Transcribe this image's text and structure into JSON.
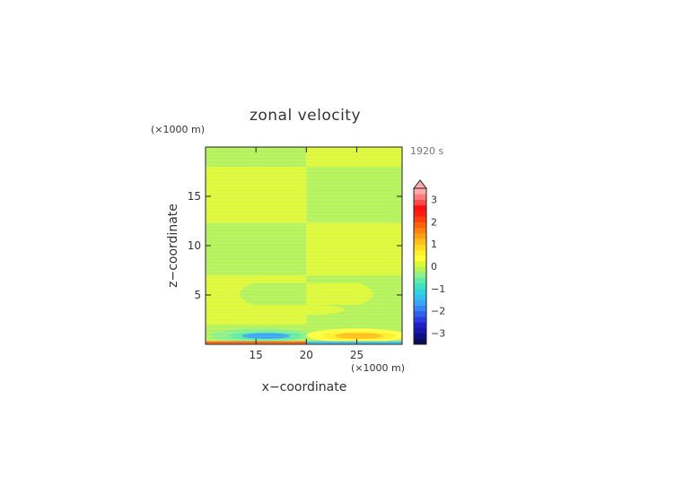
{
  "chart_data": {
    "type": "heatmap",
    "title": "zonal velocity",
    "xlabel": "x−coordinate",
    "ylabel": "z−coordinate",
    "x_unit": "(×1000 m)",
    "y_unit": "(×1000 m)",
    "time_label": "1920 s",
    "xlim": [
      10,
      29.5
    ],
    "ylim": [
      0,
      20
    ],
    "x_ticks": [
      "15",
      "20",
      "25"
    ],
    "x_tick_values": [
      15,
      20,
      25
    ],
    "y_ticks": [
      "5",
      "10",
      "15"
    ],
    "y_tick_values": [
      5,
      10,
      15
    ],
    "colorbar": {
      "ticks": [
        "3",
        "2",
        "1",
        "0",
        "−1",
        "−2",
        "−3"
      ],
      "tick_values": [
        3,
        2,
        1,
        0,
        -1,
        -2,
        -3
      ],
      "levels": [
        -3.5,
        -3.25,
        -3,
        -2.75,
        -2.5,
        -2.25,
        -2,
        -1.75,
        -1.5,
        -1.25,
        -1,
        -0.75,
        -0.5,
        -0.25,
        0,
        0.25,
        0.5,
        0.75,
        1,
        1.25,
        1.5,
        1.75,
        2,
        2.25,
        2.5,
        2.75,
        3,
        3.25,
        3.5
      ],
      "colors": [
        "#0a0a55",
        "#101080",
        "#1818a8",
        "#2020c8",
        "#2a3ee0",
        "#2f60ee",
        "#3585f5",
        "#3aa5f5",
        "#35c0ee",
        "#30d6dc",
        "#40e2c2",
        "#60eaa8",
        "#8cf088",
        "#b4f25a",
        "#dcf838",
        "#ffff3c",
        "#fff02a",
        "#ffd820",
        "#ffbe1a",
        "#ffa014",
        "#ff8010",
        "#ff600c",
        "#ff400c",
        "#ff2010",
        "#ff1010",
        "#ff4a4a",
        "#ff7c7c",
        "#ffaaaa"
      ],
      "extend": "max"
    },
    "regions": [
      {
        "xmin": 10,
        "xmax": 20,
        "zmin": 18,
        "zmax": 20,
        "value": -0.1
      },
      {
        "xmin": 20,
        "xmax": 29.5,
        "zmin": 18,
        "zmax": 20,
        "value": 0.1
      },
      {
        "xmin": 10,
        "xmax": 20,
        "zmin": 12.3,
        "zmax": 18,
        "value": 0.1
      },
      {
        "xmin": 20,
        "xmax": 29.5,
        "zmin": 12.3,
        "zmax": 18,
        "value": -0.1
      },
      {
        "xmin": 10,
        "xmax": 20,
        "zmin": 7,
        "zmax": 12.3,
        "value": -0.1
      },
      {
        "xmin": 20,
        "xmax": 29.5,
        "zmin": 7,
        "zmax": 12.3,
        "value": 0.1
      },
      {
        "xmin": 10,
        "xmax": 20,
        "zmin": 0.5,
        "zmax": 7,
        "value": 0.1
      },
      {
        "xmin": 20,
        "xmax": 29.5,
        "zmin": 0.5,
        "zmax": 7,
        "value": -0.1
      }
    ],
    "features": [
      {
        "kind": "tongue",
        "xmin": 12.5,
        "xmax": 20,
        "zmin": 4.0,
        "zmax": 6.2,
        "value": -0.1
      },
      {
        "kind": "tongue",
        "xmin": 20,
        "xmax": 27.5,
        "zmin": 4.0,
        "zmax": 6.2,
        "value": 0.1
      },
      {
        "kind": "blob",
        "cx": 20.3,
        "cz": 3.5,
        "rx": 3.5,
        "rz": 0.5,
        "value": 0.1
      },
      {
        "kind": "band",
        "xmin": 10,
        "xmax": 29.5,
        "zmin": 0.3,
        "zmax": 2.0,
        "value": -0.1
      },
      {
        "kind": "blob",
        "cx": 15.5,
        "cz": 0.9,
        "rx": 5.0,
        "rz": 0.7,
        "value": -0.3
      },
      {
        "kind": "blob",
        "cx": 16.0,
        "cz": 0.85,
        "rx": 3.6,
        "rz": 0.45,
        "value": -0.7
      },
      {
        "kind": "blob",
        "cx": 16.0,
        "cz": 0.85,
        "rx": 2.4,
        "rz": 0.28,
        "value": -1.6
      },
      {
        "kind": "blob",
        "cx": 25.0,
        "cz": 0.9,
        "rx": 5.0,
        "rz": 0.7,
        "value": 0.3
      },
      {
        "kind": "blob",
        "cx": 25.2,
        "cz": 0.85,
        "rx": 3.6,
        "rz": 0.45,
        "value": 0.6
      },
      {
        "kind": "blob",
        "cx": 25.2,
        "cz": 0.85,
        "rx": 2.4,
        "rz": 0.28,
        "value": 1.1
      },
      {
        "kind": "band",
        "xmin": 10,
        "xmax": 20,
        "zmin": 0,
        "zmax": 0.3,
        "value": 1.9
      },
      {
        "kind": "band",
        "xmin": 20,
        "xmax": 29.5,
        "zmin": 0,
        "zmax": 0.3,
        "value": -1.3
      }
    ]
  }
}
